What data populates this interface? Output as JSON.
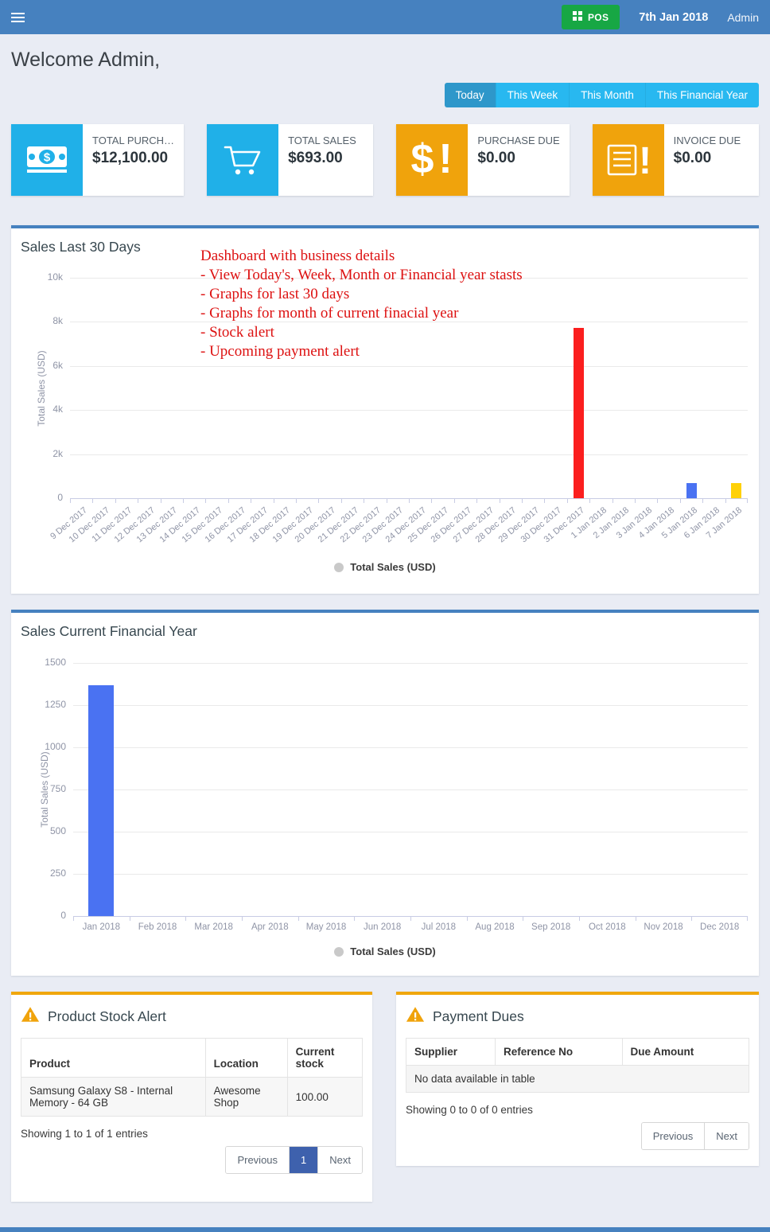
{
  "navbar": {
    "pos_label": "POS",
    "date": "7th Jan 2018",
    "user": "Admin"
  },
  "page_title": "Welcome Admin,",
  "tabs": {
    "items": [
      {
        "label": "Today",
        "active": true
      },
      {
        "label": "This Week",
        "active": false
      },
      {
        "label": "This Month",
        "active": false
      },
      {
        "label": "This Financial Year",
        "active": false
      }
    ]
  },
  "cards": [
    {
      "label": "TOTAL PURCH…",
      "value": "$12,100.00",
      "icon": "money-bill-icon",
      "accent": "#20b0e8"
    },
    {
      "label": "TOTAL SALES",
      "value": "$693.00",
      "icon": "shopping-cart-icon",
      "accent": "#20b0e8"
    },
    {
      "label": "PURCHASE DUE",
      "value": "$0.00",
      "icon": "dollar-alert-icon",
      "accent": "#f0a30c"
    },
    {
      "label": "INVOICE DUE",
      "value": "$0.00",
      "icon": "invoice-alert-icon",
      "accent": "#f0a30c"
    }
  ],
  "chart_data": [
    {
      "type": "bar",
      "title": "Sales Last 30 Days",
      "ylabel": "Total Sales (USD)",
      "legend": "Total Sales (USD)",
      "ylim": [
        0,
        10000
      ],
      "yticks": [
        0,
        2000,
        4000,
        6000,
        8000,
        10000
      ],
      "ytick_labels": [
        "0",
        "2k",
        "4k",
        "6k",
        "8k",
        "10k"
      ],
      "categories": [
        "9 Dec 2017",
        "10 Dec 2017",
        "11 Dec 2017",
        "12 Dec 2017",
        "13 Dec 2017",
        "14 Dec 2017",
        "15 Dec 2017",
        "16 Dec 2017",
        "17 Dec 2017",
        "18 Dec 2017",
        "19 Dec 2017",
        "20 Dec 2017",
        "21 Dec 2017",
        "22 Dec 2017",
        "23 Dec 2017",
        "24 Dec 2017",
        "25 Dec 2017",
        "26 Dec 2017",
        "27 Dec 2017",
        "28 Dec 2017",
        "29 Dec 2017",
        "30 Dec 2017",
        "31 Dec 2017",
        "1 Jan 2018",
        "2 Jan 2018",
        "3 Jan 2018",
        "4 Jan 2018",
        "5 Jan 2018",
        "6 Jan 2018",
        "7 Jan 2018"
      ],
      "values": [
        0,
        0,
        0,
        0,
        0,
        0,
        0,
        0,
        0,
        0,
        0,
        0,
        0,
        0,
        0,
        0,
        0,
        0,
        0,
        0,
        0,
        0,
        7725,
        0,
        0,
        0,
        0,
        700,
        0,
        693
      ],
      "bar_colors": {
        "22": "#fb1e1e",
        "27": "#4a72f2",
        "29": "#ffd107"
      },
      "grid": true,
      "x_labels_rotated": true,
      "legend_position": "bottom",
      "annotations": [
        "Dashboard with business details",
        "- View Today's, Week, Month or Financial year stasts",
        "- Graphs for last 30 days",
        "- Graphs for month of current finacial year",
        "- Stock alert",
        "- Upcoming payment alert"
      ]
    },
    {
      "type": "bar",
      "title": "Sales Current Financial Year",
      "ylabel": "Total Sales (USD)",
      "legend": "Total Sales (USD)",
      "ylim": [
        0,
        1500
      ],
      "yticks": [
        0,
        250,
        500,
        750,
        1000,
        1250,
        1500
      ],
      "ytick_labels": [
        "0",
        "250",
        "500",
        "750",
        "1000",
        "1250",
        "1500"
      ],
      "categories": [
        "Jan 2018",
        "Feb 2018",
        "Mar 2018",
        "Apr 2018",
        "May 2018",
        "Jun 2018",
        "Jul 2018",
        "Aug 2018",
        "Sep 2018",
        "Oct 2018",
        "Nov 2018",
        "Dec 2018"
      ],
      "values": [
        1368,
        0,
        0,
        0,
        0,
        0,
        0,
        0,
        0,
        0,
        0,
        0
      ],
      "default_bar_color": "#4a72f2",
      "grid": true,
      "x_labels_rotated": false,
      "legend_position": "bottom"
    }
  ],
  "stock_alert": {
    "title": "Product Stock Alert",
    "columns": [
      "Product",
      "Location",
      "Current stock"
    ],
    "rows": [
      [
        "Samsung Galaxy S8 - Internal Memory - 64 GB",
        "Awesome Shop",
        "100.00"
      ]
    ],
    "info": "Showing 1 to 1 of 1 entries",
    "pagination": [
      "Previous",
      "1",
      "Next"
    ],
    "active_page": "1"
  },
  "payment_dues": {
    "title": "Payment Dues",
    "columns": [
      "Supplier",
      "Reference No",
      "Due Amount"
    ],
    "empty_text": "No data available in table",
    "info": "Showing 0 to 0 of 0 entries",
    "pagination": [
      "Previous",
      "Next"
    ]
  },
  "colors": {
    "navbar": "#4681bf",
    "tab_active": "#2e97ca",
    "tab_inactive": "#28b8f0",
    "card_cyan": "#20b0e8",
    "card_orange": "#f0a30c",
    "pos_green": "#17a744",
    "annotation_red": "#dd1111",
    "pagination_active": "#3e61ad"
  }
}
